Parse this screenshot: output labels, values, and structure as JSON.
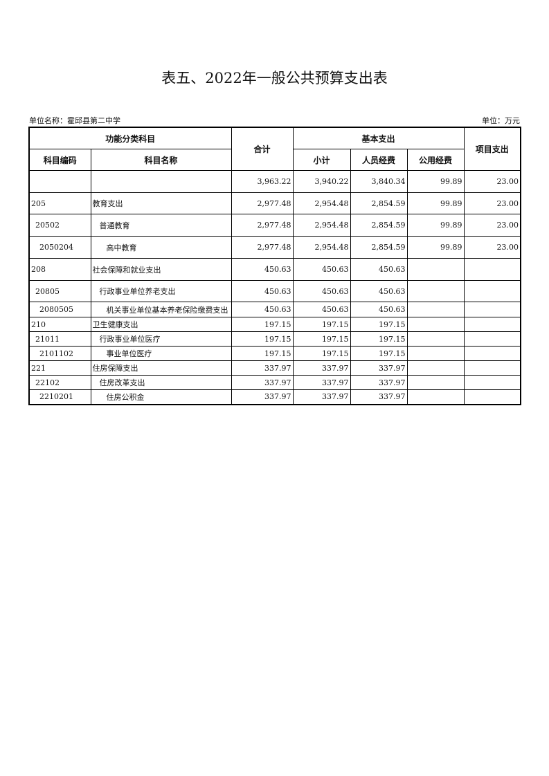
{
  "title": "表五、2022年一般公共预算支出表",
  "unit_name": "单位名称：霍邱县第二中学",
  "unit": "单位：万元",
  "headers": {
    "functional_category": "功能分类科目",
    "total": "合计",
    "basic": "基本支出",
    "project": "项目支出",
    "code": "科目编码",
    "name": "科目名称",
    "subtotal": "小计",
    "personnel": "人员经费",
    "public": "公用经费"
  },
  "rows": [
    {
      "code": "",
      "name": "",
      "total": "3,963.22",
      "subtotal": "3,940.22",
      "personnel": "3,840.34",
      "public": "99.89",
      "project": "23.00",
      "level": 0
    },
    {
      "code": "205",
      "name": "教育支出",
      "total": "2,977.48",
      "subtotal": "2,954.48",
      "personnel": "2,854.59",
      "public": "99.89",
      "project": "23.00",
      "level": 0
    },
    {
      "code": "20502",
      "name": "普通教育",
      "total": "2,977.48",
      "subtotal": "2,954.48",
      "personnel": "2,854.59",
      "public": "99.89",
      "project": "23.00",
      "level": 1
    },
    {
      "code": "2050204",
      "name": "高中教育",
      "total": "2,977.48",
      "subtotal": "2,954.48",
      "personnel": "2,854.59",
      "public": "99.89",
      "project": "23.00",
      "level": 2
    },
    {
      "code": "208",
      "name": "社会保障和就业支出",
      "total": "450.63",
      "subtotal": "450.63",
      "personnel": "450.63",
      "public": "",
      "project": "",
      "level": 0
    },
    {
      "code": "20805",
      "name": "行政事业单位养老支出",
      "total": "450.63",
      "subtotal": "450.63",
      "personnel": "450.63",
      "public": "",
      "project": "",
      "level": 1
    },
    {
      "code": "2080505",
      "name": "机关事业单位基本养老保险缴费支出",
      "total": "450.63",
      "subtotal": "450.63",
      "personnel": "450.63",
      "public": "",
      "project": "",
      "level": 2
    },
    {
      "code": "210",
      "name": "卫生健康支出",
      "total": "197.15",
      "subtotal": "197.15",
      "personnel": "197.15",
      "public": "",
      "project": "",
      "level": 0
    },
    {
      "code": "21011",
      "name": "行政事业单位医疗",
      "total": "197.15",
      "subtotal": "197.15",
      "personnel": "197.15",
      "public": "",
      "project": "",
      "level": 1
    },
    {
      "code": "2101102",
      "name": "事业单位医疗",
      "total": "197.15",
      "subtotal": "197.15",
      "personnel": "197.15",
      "public": "",
      "project": "",
      "level": 2
    },
    {
      "code": "221",
      "name": "住房保障支出",
      "total": "337.97",
      "subtotal": "337.97",
      "personnel": "337.97",
      "public": "",
      "project": "",
      "level": 0
    },
    {
      "code": "22102",
      "name": "住房改革支出",
      "total": "337.97",
      "subtotal": "337.97",
      "personnel": "337.97",
      "public": "",
      "project": "",
      "level": 1
    },
    {
      "code": "2210201",
      "name": "住房公积金",
      "total": "337.97",
      "subtotal": "337.97",
      "personnel": "337.97",
      "public": "",
      "project": "",
      "level": 2
    }
  ]
}
